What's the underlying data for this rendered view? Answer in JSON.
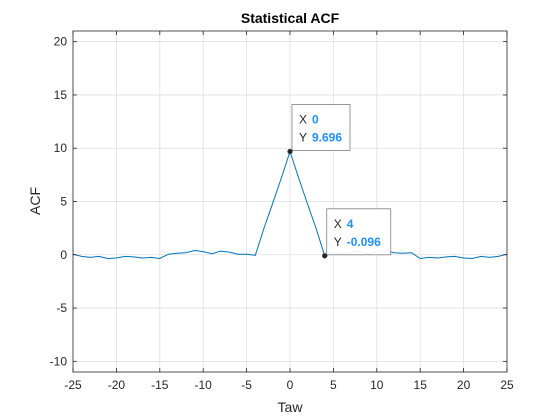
{
  "chart_data": {
    "type": "line",
    "title": "Statistical ACF",
    "xlabel": "Taw",
    "ylabel": "ACF",
    "xlim": [
      -25,
      25
    ],
    "ylim": [
      -11,
      21
    ],
    "x_ticks": [
      -25,
      -20,
      -15,
      -10,
      -5,
      0,
      5,
      10,
      15,
      20,
      25
    ],
    "y_ticks": [
      -10,
      -5,
      0,
      5,
      10,
      15,
      20
    ],
    "grid": true,
    "series": [
      {
        "color": "#0072BD",
        "x": [
          -25,
          -24,
          -23,
          -22,
          -21,
          -20,
          -19,
          -18,
          -17,
          -16,
          -15,
          -14,
          -13,
          -12,
          -11,
          -10,
          -9,
          -8,
          -7,
          -6,
          -5,
          -4,
          -3,
          -2,
          -1,
          0,
          1,
          2,
          3,
          4,
          5,
          6,
          7,
          8,
          9,
          10,
          11,
          12,
          13,
          14,
          15,
          16,
          17,
          18,
          19,
          20,
          21,
          22,
          23,
          24,
          25
        ],
        "y": [
          0.05,
          -0.15,
          -0.25,
          -0.15,
          -0.35,
          -0.3,
          -0.15,
          -0.2,
          -0.3,
          -0.25,
          -0.35,
          0.05,
          0.15,
          0.2,
          0.4,
          0.3,
          0.1,
          0.35,
          0.25,
          0.05,
          0.05,
          -0.05,
          2.5,
          4.8,
          7.2,
          9.696,
          7.2,
          4.8,
          2.5,
          -0.096,
          0.2,
          0.05,
          0.25,
          0.35,
          0.05,
          0.3,
          0.4,
          0.2,
          0.15,
          0.2,
          -0.35,
          -0.25,
          -0.3,
          -0.2,
          -0.15,
          -0.3,
          -0.35,
          -0.15,
          -0.25,
          -0.15,
          0.05
        ]
      }
    ],
    "datatips": [
      {
        "x_label": "X",
        "x_value": "0",
        "y_label": "Y",
        "y_value": "9.696",
        "x": 0,
        "y": 9.696
      },
      {
        "x_label": "X",
        "x_value": "4",
        "y_label": "Y",
        "y_value": "-0.096",
        "x": 4,
        "y": -0.096
      }
    ]
  }
}
